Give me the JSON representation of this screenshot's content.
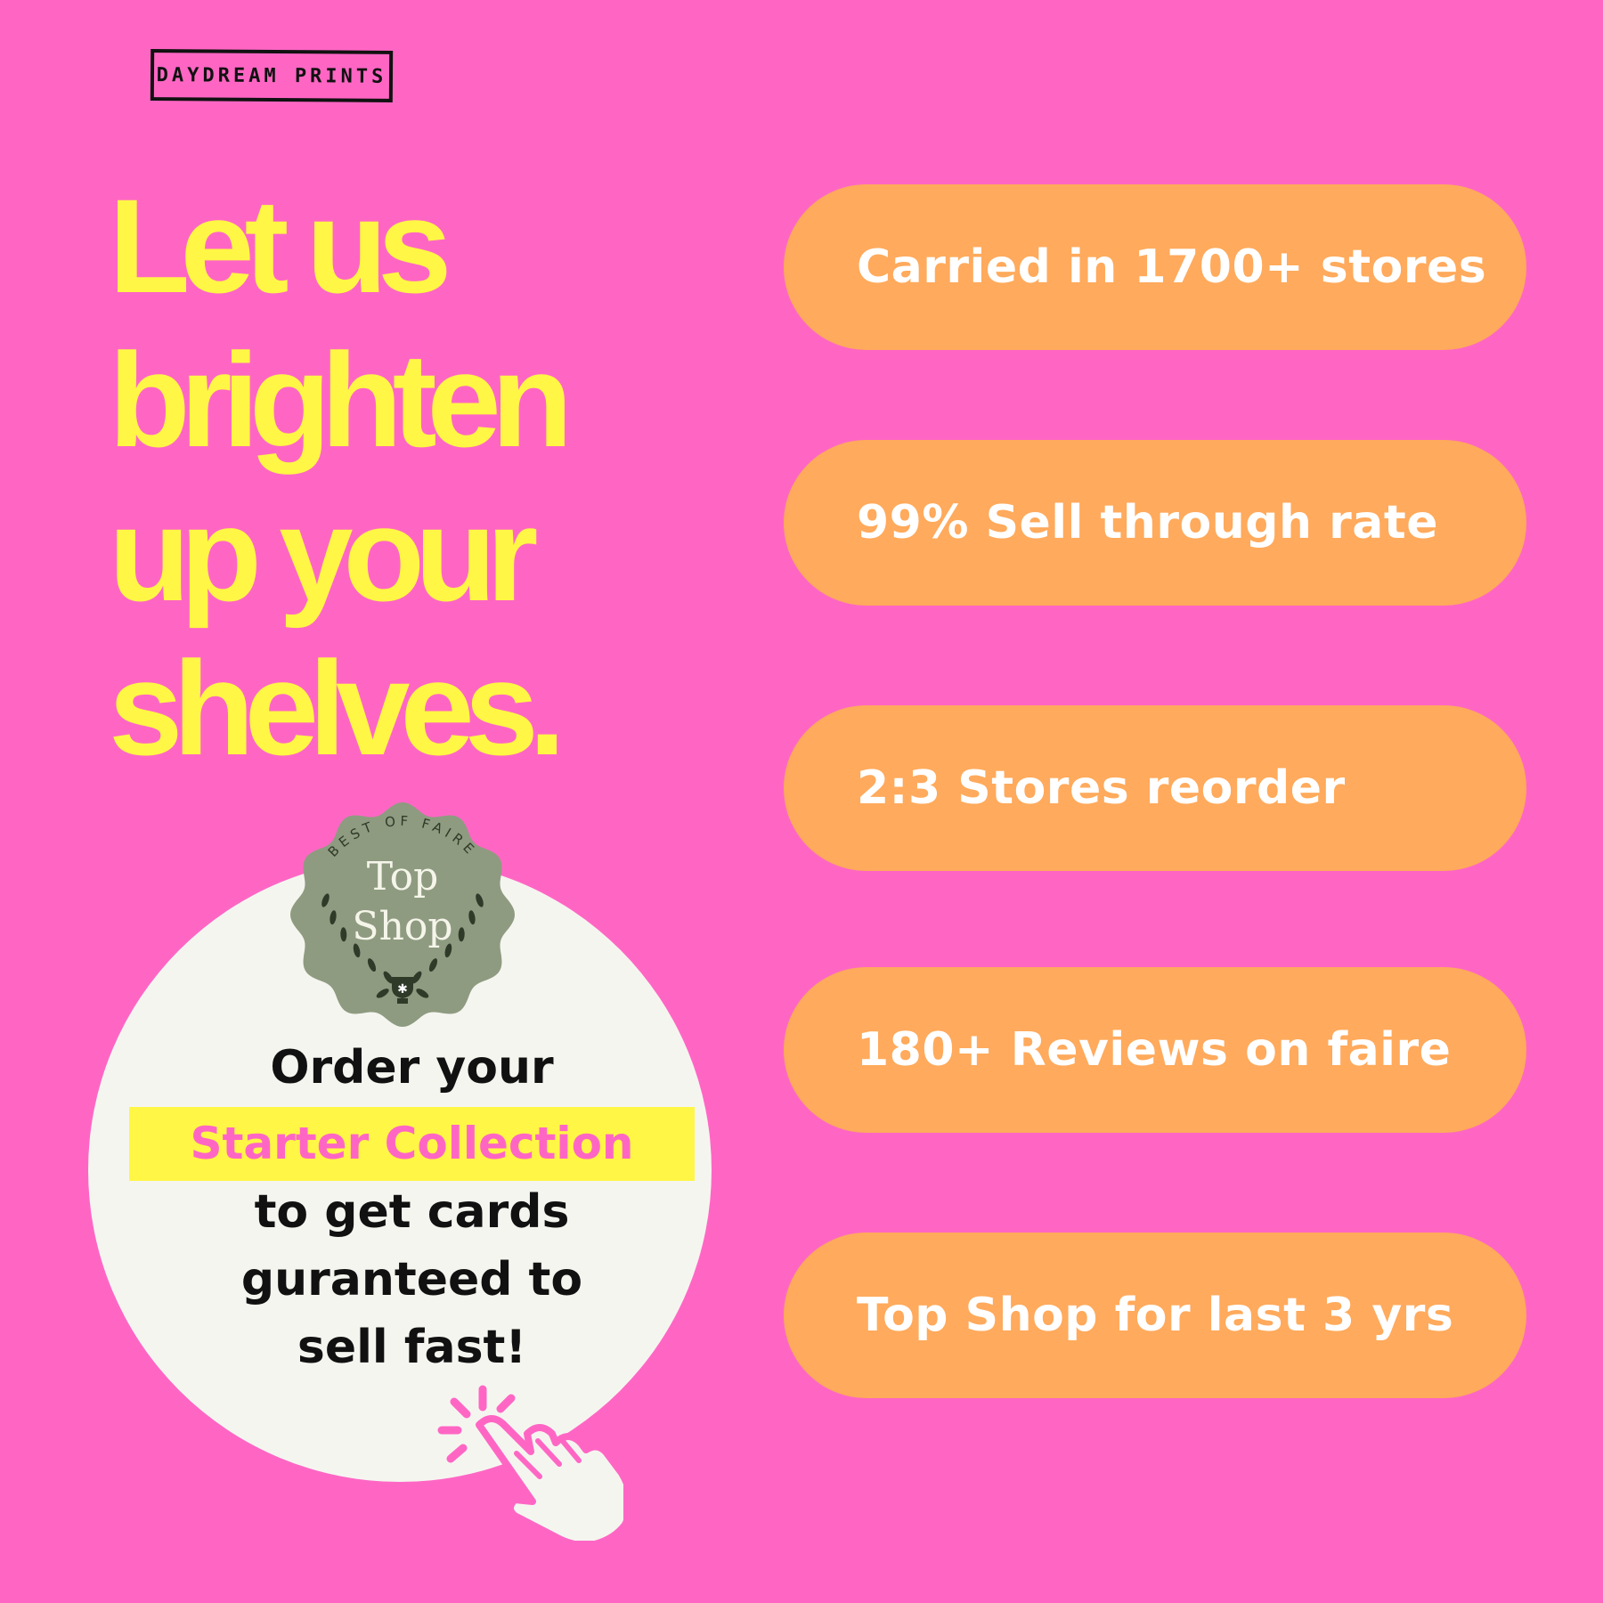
{
  "brand": {
    "logo_text": "DAYDREAM PRINTS"
  },
  "headline": {
    "lines": [
      "Let us",
      "brighten",
      "up your",
      "shelves."
    ]
  },
  "stats": [
    {
      "label": "Carried in 1700+ stores"
    },
    {
      "label": "99% Sell through rate"
    },
    {
      "label": "2:3 Stores reorder"
    },
    {
      "label": "180+ Reviews on faire"
    },
    {
      "label": "Top Shop for last 3 yrs"
    }
  ],
  "badge": {
    "arc_text": "BEST OF FAIRE",
    "title_line1": "Top",
    "title_line2": "Shop"
  },
  "cta": {
    "line1": "Order your",
    "highlight": "Starter Collection",
    "line3": "to get cards",
    "line4": "guranteed to",
    "line5": "sell fast!"
  },
  "icons": {
    "click": "hand-pointer-click-icon"
  },
  "colors": {
    "background": "#ff66c4",
    "headline": "#fff645",
    "pill": "#ffaa5c",
    "circle": "#f5f5f0",
    "badge": "#8e9b80"
  }
}
